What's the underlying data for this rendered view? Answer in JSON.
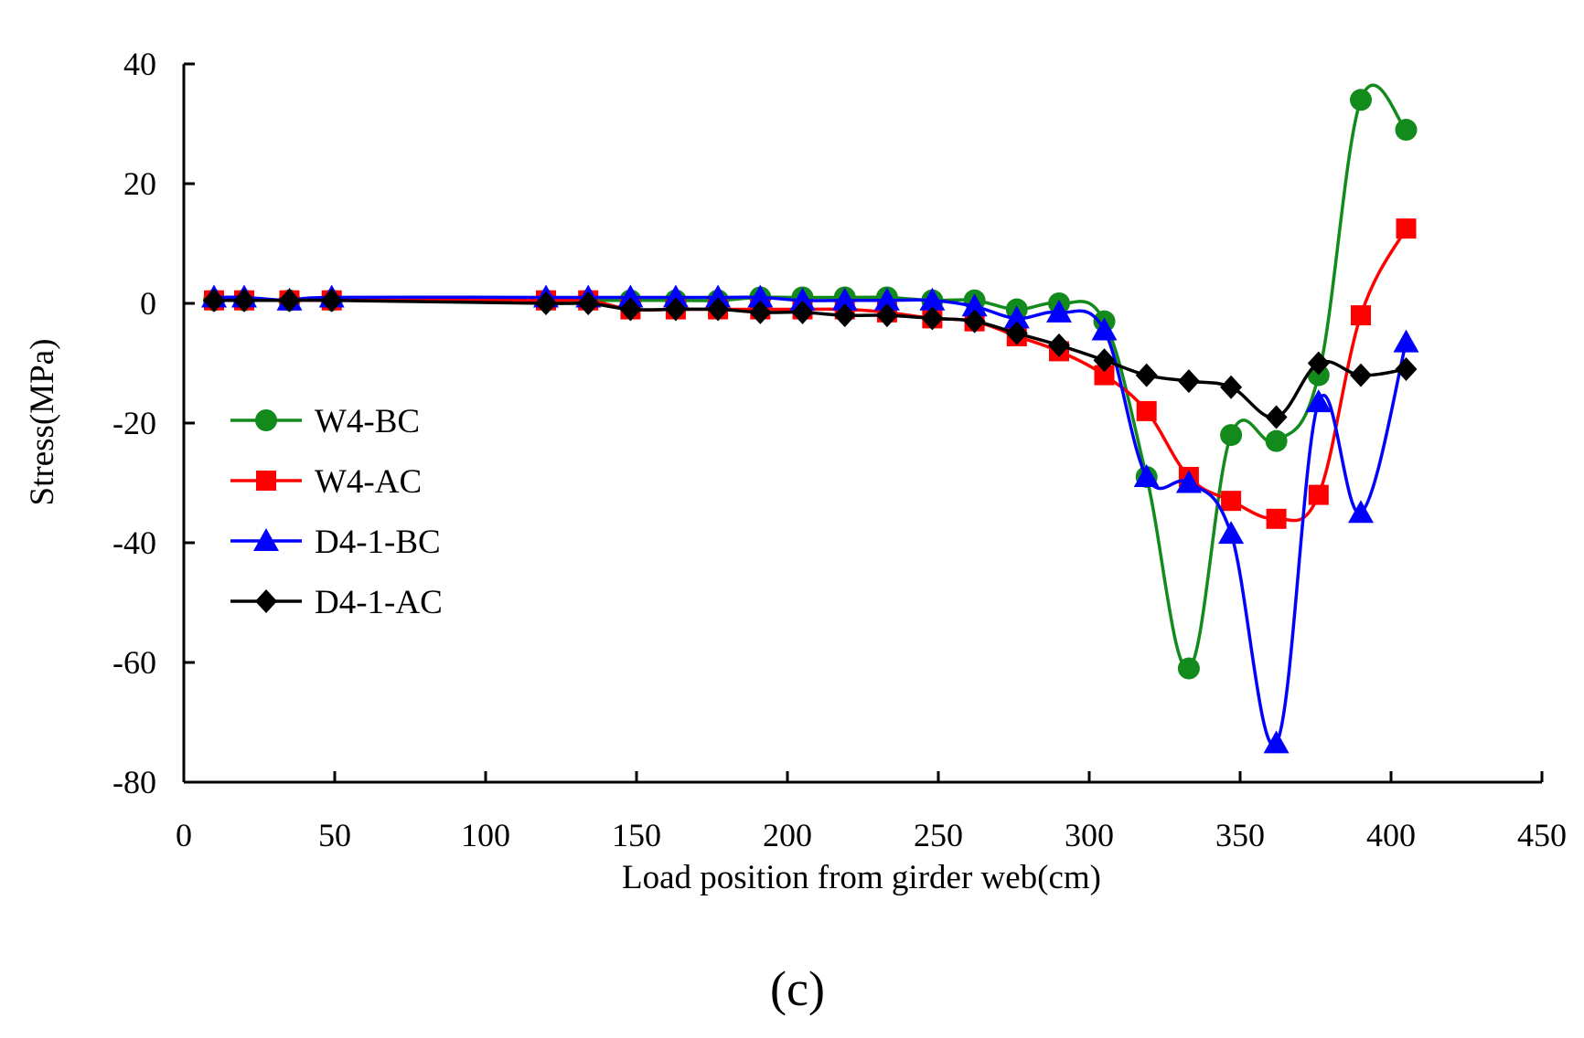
{
  "chart_data": {
    "type": "line",
    "title": "",
    "xlabel": "Load position from girder web(cm)",
    "ylabel": "Stress(MPa)",
    "xlim": [
      0,
      450
    ],
    "ylim": [
      -80,
      40
    ],
    "xticks": [
      "0",
      "50",
      "100",
      "150",
      "200",
      "250",
      "300",
      "350",
      "400",
      "450"
    ],
    "yticks": [
      "40",
      "20",
      "0",
      "-20",
      "-40",
      "-60",
      "-80"
    ],
    "caption": "(c)",
    "legend_position": "left-middle",
    "series": [
      {
        "name": "W4-BC",
        "color": "#138a1c",
        "marker": "circle",
        "x": [
          10,
          20,
          35,
          49,
          120,
          134,
          148,
          163,
          177,
          191,
          205,
          219,
          233,
          248,
          262,
          276,
          290,
          305,
          319,
          333,
          347,
          362,
          376,
          390,
          405
        ],
        "y": [
          0.5,
          0.5,
          0.5,
          0.5,
          0.5,
          0.5,
          0.5,
          0.5,
          0.5,
          1,
          1,
          1,
          1,
          0.5,
          0.5,
          -1,
          0,
          -3,
          -29,
          -61,
          -22,
          -23,
          -12,
          34,
          29
        ]
      },
      {
        "name": "W4-AC",
        "color": "#ff0000",
        "marker": "square",
        "x": [
          10,
          20,
          35,
          49,
          120,
          134,
          148,
          163,
          177,
          191,
          205,
          219,
          233,
          248,
          262,
          276,
          290,
          305,
          319,
          333,
          347,
          362,
          376,
          390,
          405
        ],
        "y": [
          0.5,
          0.5,
          0.5,
          0.5,
          0.5,
          0.5,
          -1,
          -1,
          -1,
          -1,
          -1,
          -1,
          -1.5,
          -2.5,
          -3,
          -5.5,
          -8,
          -12,
          -18,
          -29,
          -33,
          -36,
          -32,
          -2,
          12.5
        ]
      },
      {
        "name": "D4-1-BC",
        "color": "#0000ff",
        "marker": "triangle",
        "x": [
          10,
          20,
          35,
          49,
          120,
          134,
          148,
          163,
          177,
          191,
          205,
          219,
          233,
          248,
          262,
          276,
          290,
          305,
          319,
          333,
          347,
          362,
          376,
          390,
          405
        ],
        "y": [
          1,
          1,
          0.5,
          1,
          1,
          1,
          1,
          1,
          1,
          1,
          0.5,
          0.5,
          0.5,
          0.5,
          -0.5,
          -2.5,
          -1.5,
          -4.5,
          -29,
          -30,
          -38.5,
          -73.5,
          -16.5,
          -35,
          -6.5
        ]
      },
      {
        "name": "D4-1-AC",
        "color": "#000000",
        "marker": "diamond",
        "x": [
          10,
          20,
          35,
          49,
          120,
          134,
          148,
          163,
          177,
          191,
          205,
          219,
          233,
          248,
          262,
          276,
          290,
          305,
          319,
          333,
          347,
          362,
          376,
          390,
          405
        ],
        "y": [
          0.5,
          0.5,
          0.5,
          0.5,
          0,
          0,
          -1,
          -1,
          -1,
          -1.5,
          -1.5,
          -2,
          -2,
          -2.5,
          -3,
          -5,
          -7,
          -9.5,
          -12,
          -13,
          -14,
          -19,
          -10,
          -12,
          -11
        ]
      }
    ]
  }
}
